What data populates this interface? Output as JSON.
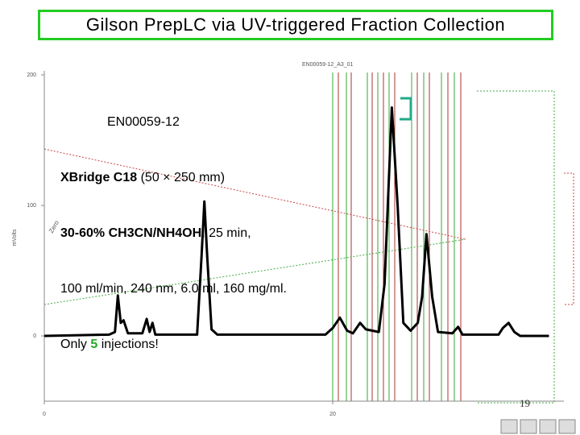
{
  "slide_title": "Gilson PrepLC via UV-triggered Fraction Collection",
  "notes": [
    [
      "EN00059-12"
    ],
    [
      "XBridge C18",
      " (50 × 250 mm)"
    ],
    [
      "30-60% CH3CN/NH4OH",
      ", 25 min,"
    ],
    [
      "100 ml/min, 240 nm, 6.0 ml, 160 mg/ml."
    ],
    [
      "Only ",
      "5",
      " injections!"
    ]
  ],
  "page_number": "19",
  "chart_data": {
    "type": "line",
    "title": "EN00059-12_A3_01",
    "ylabel": "mVolts",
    "annotation": "Zero",
    "x": [
      0,
      4.5,
      4.9,
      5.1,
      5.3,
      5.5,
      5.8,
      6.8,
      7.1,
      7.3,
      7.5,
      7.7,
      10.6,
      10.9,
      11.1,
      11.3,
      11.6,
      12,
      19.5,
      20.0,
      20.5,
      21.0,
      21.4,
      21.9,
      22.3,
      23.2,
      23.6,
      24.1,
      24.5,
      24.9,
      25.4,
      25.9,
      26.2,
      26.5,
      26.9,
      27.3,
      28.3,
      28.7,
      29.0,
      31.5,
      31.8,
      32.2,
      32.6,
      33,
      35
    ],
    "values": [
      0,
      1,
      3,
      31,
      10,
      12,
      2,
      2,
      13,
      3,
      10,
      1,
      1,
      60,
      103,
      60,
      5,
      1,
      1,
      6,
      14,
      4,
      2,
      10,
      5,
      3,
      40,
      175,
      100,
      10,
      4,
      10,
      30,
      78,
      30,
      3,
      2,
      7,
      1,
      1,
      6,
      10,
      3,
      0,
      0
    ],
    "color": "#000000",
    "xlim": [
      0,
      36
    ],
    "ylim": [
      -50,
      200
    ],
    "xticks": [
      0,
      20
    ],
    "yticks": [
      0,
      100,
      200
    ]
  }
}
